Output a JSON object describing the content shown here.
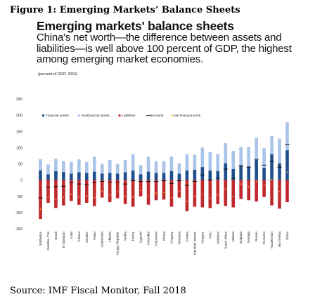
{
  "figure_label": "Figure 1:  Emerging Markets’ Balance Sheets",
  "chart_data": {
    "type": "bar",
    "title": "Emerging markets' balance sheets",
    "subtitle": "China's net worth—the difference between assets and liabilities—is well above 100 percent of GDP, the highest among emerging market economies.",
    "unit_note": "(percent of GDP, 2016)",
    "ylim": [
      -150,
      250
    ],
    "yticks": [
      250,
      200,
      150,
      100,
      50,
      0,
      -50,
      -100,
      -150
    ],
    "legend": [
      "Financial assets",
      "Nonfinancial assets",
      "Liabilities",
      "Net worth",
      "Net financial worth"
    ],
    "colors": {
      "Financial assets": "#1f4e8c",
      "Nonfinancial assets": "#a9c4e8",
      "Liabilities": "#c0282d",
      "Net worth": "#111111",
      "Net financial worth": "#f2c22e"
    },
    "categories": [
      "Barbados",
      "Gambia, The",
      "Brazil",
      "El Salvador",
      "India",
      "Poland",
      "Ukraine",
      "Palau",
      "Guatemala",
      "Albania",
      "Kyrgyz Republic",
      "Serbia",
      "Turkey",
      "Uganda",
      "Colombia",
      "Indonesia",
      "Kenya",
      "Uruguay",
      "Tanzania",
      "Croatia",
      "Marshall Islands",
      "Hungary",
      "Peru",
      "Moldova",
      "South Africa",
      "Malawi",
      "Bulgaria",
      "Georgia",
      "Russia",
      "Romania",
      "Kazakhstan",
      "Micronesia",
      "China"
    ],
    "series": [
      {
        "name": "Financial assets",
        "values": [
          30,
          18,
          28,
          25,
          20,
          24,
          22,
          26,
          20,
          22,
          20,
          24,
          30,
          18,
          26,
          22,
          22,
          28,
          20,
          30,
          32,
          40,
          30,
          28,
          52,
          34,
          46,
          42,
          62,
          38,
          80,
          52,
          92
        ]
      },
      {
        "name": "Nonfinancial assets",
        "values": [
          35,
          30,
          38,
          34,
          36,
          40,
          34,
          46,
          30,
          40,
          30,
          38,
          50,
          28,
          46,
          36,
          36,
          44,
          32,
          50,
          46,
          60,
          56,
          52,
          62,
          56,
          56,
          60,
          68,
          60,
          56,
          76,
          86
        ]
      },
      {
        "name": "Liabilities",
        "values": [
          -120,
          -70,
          -86,
          -78,
          -64,
          -76,
          -70,
          -80,
          -54,
          -68,
          -56,
          -74,
          -82,
          -50,
          -76,
          -62,
          -60,
          -82,
          -54,
          -96,
          -82,
          -84,
          -86,
          -74,
          -80,
          -84,
          -58,
          -62,
          -66,
          -52,
          -78,
          -88,
          -68
        ]
      },
      {
        "name": "Net worth",
        "values": [
          -55,
          -22,
          -20,
          -19,
          -8,
          -12,
          -14,
          -8,
          -4,
          -6,
          -6,
          -12,
          -2,
          -4,
          -4,
          -4,
          -2,
          -10,
          -2,
          -16,
          -4,
          16,
          0,
          6,
          34,
          6,
          44,
          40,
          64,
          46,
          58,
          40,
          110
        ]
      },
      {
        "name": "Net financial worth",
        "values": [
          -90,
          -52,
          -58,
          -53,
          -44,
          -52,
          -48,
          -54,
          -34,
          -46,
          -36,
          -50,
          -52,
          -32,
          -50,
          -40,
          -38,
          -54,
          -34,
          -66,
          -50,
          -44,
          -56,
          -46,
          -28,
          -50,
          -12,
          -20,
          -4,
          -14,
          2,
          -36,
          24
        ]
      }
    ]
  },
  "source": "Source: IMF Fiscal Monitor, Fall 2018"
}
